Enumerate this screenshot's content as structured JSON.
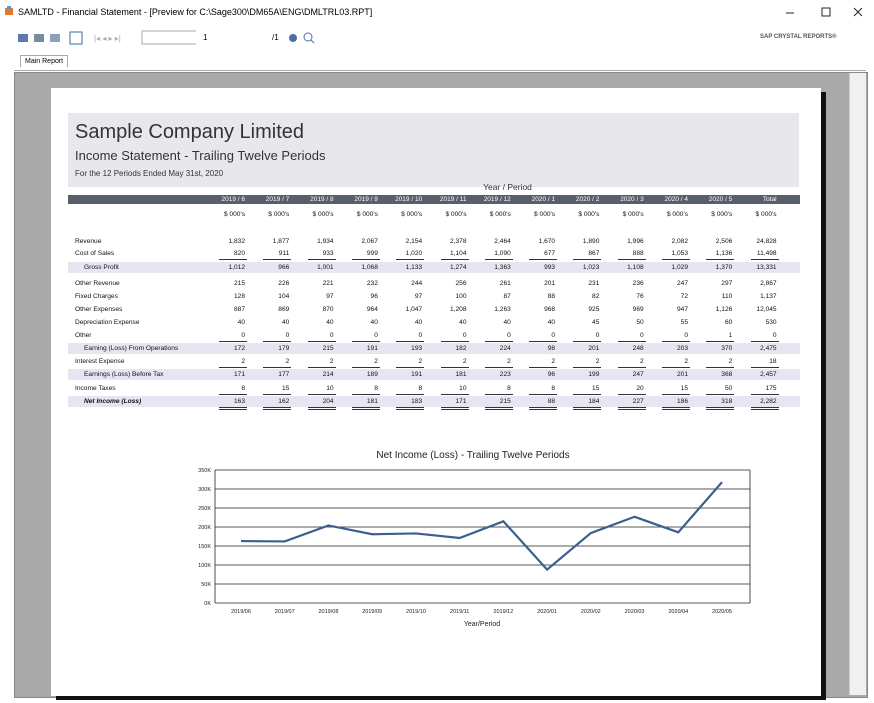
{
  "window": {
    "title": "SAMLTD - Financial Statement - [Preview for C:\\Sage300\\DM65A\\ENG\\DMLTRL03.RPT]"
  },
  "toolbar": {
    "page_input": "1",
    "page_total": "/1",
    "brand": "SAP CRYSTAL REPORTS®"
  },
  "tab": "Main Report",
  "report": {
    "company": "Sample Company Limited",
    "title": "Income Statement - Trailing Twelve Periods",
    "subtitle": "For the 12 Periods Ended May 31st, 2020"
  },
  "table": {
    "group_header": "Year / Period",
    "columns": [
      "2019 / 6",
      "2019 / 7",
      "2019 / 8",
      "2019 / 9",
      "2019 / 10",
      "2019 / 11",
      "2019 / 12",
      "2020 / 1",
      "2020 / 2",
      "2020 / 3",
      "2020 / 4",
      "2020 / 5",
      "Total"
    ],
    "units": "$ 000's",
    "rows": [
      {
        "label": "Revenue",
        "values": [
          "1,832",
          "1,877",
          "1,934",
          "2,067",
          "2,154",
          "2,378",
          "2,464",
          "1,670",
          "1,890",
          "1,996",
          "2,082",
          "2,506",
          "24,828"
        ]
      },
      {
        "label": "Cost of Sales",
        "values": [
          "820",
          "911",
          "933",
          "999",
          "1,020",
          "1,104",
          "1,090",
          "677",
          "867",
          "888",
          "1,053",
          "1,136",
          "11,498"
        ]
      },
      {
        "label": "Gross Profit",
        "values": [
          "1,012",
          "966",
          "1,001",
          "1,068",
          "1,133",
          "1,274",
          "1,363",
          "993",
          "1,023",
          "1,108",
          "1,029",
          "1,370",
          "13,331"
        ]
      },
      {
        "label": "Other Revenue",
        "values": [
          "215",
          "226",
          "221",
          "232",
          "244",
          "256",
          "261",
          "201",
          "231",
          "236",
          "247",
          "297",
          "2,867"
        ]
      },
      {
        "label": "Fixed Charges",
        "values": [
          "128",
          "104",
          "97",
          "96",
          "97",
          "100",
          "87",
          "88",
          "82",
          "76",
          "72",
          "110",
          "1,137"
        ]
      },
      {
        "label": "Other Expenses",
        "values": [
          "887",
          "869",
          "870",
          "964",
          "1,047",
          "1,208",
          "1,263",
          "968",
          "925",
          "969",
          "947",
          "1,126",
          "12,045"
        ]
      },
      {
        "label": "Depreciation Expense",
        "values": [
          "40",
          "40",
          "40",
          "40",
          "40",
          "40",
          "40",
          "40",
          "45",
          "50",
          "55",
          "60",
          "530"
        ]
      },
      {
        "label": "Other",
        "values": [
          "0",
          "0",
          "0",
          "0",
          "0",
          "0",
          "0",
          "0",
          "0",
          "0",
          "0",
          "1",
          "0"
        ]
      },
      {
        "label": "Earning (Loss) From Operations",
        "values": [
          "172",
          "179",
          "215",
          "191",
          "193",
          "182",
          "224",
          "98",
          "201",
          "248",
          "203",
          "370",
          "2,475"
        ]
      },
      {
        "label": "Interest Expense",
        "values": [
          "2",
          "2",
          "2",
          "2",
          "2",
          "2",
          "2",
          "2",
          "2",
          "2",
          "2",
          "2",
          "18"
        ]
      },
      {
        "label": "Earnings (Loss) Before Tax",
        "values": [
          "171",
          "177",
          "214",
          "189",
          "191",
          "181",
          "223",
          "96",
          "199",
          "247",
          "201",
          "368",
          "2,457"
        ]
      },
      {
        "label": "Income Taxes",
        "values": [
          "8",
          "15",
          "10",
          "8",
          "8",
          "10",
          "8",
          "8",
          "15",
          "20",
          "15",
          "50",
          "175"
        ]
      },
      {
        "label": "Net Income (Loss)",
        "values": [
          "163",
          "162",
          "204",
          "181",
          "183",
          "171",
          "215",
          "88",
          "184",
          "227",
          "186",
          "318",
          "2,282"
        ]
      }
    ]
  },
  "chart_data": {
    "type": "line",
    "title": "Net Income (Loss) - Trailing Twelve Periods",
    "x_label": "Year/Period",
    "categories": [
      "2019/06",
      "2019/07",
      "2019/08",
      "2019/09",
      "2019/10",
      "2019/11",
      "2019/12",
      "2020/01",
      "2020/02",
      "2020/03",
      "2020/04",
      "2020/05"
    ],
    "values": [
      163000,
      162000,
      204000,
      181000,
      183000,
      171000,
      215000,
      88000,
      184000,
      227000,
      186000,
      318000
    ],
    "color": "#3b5f8e",
    "ylim": [
      0,
      350000
    ],
    "yticks": [
      {
        "value": 0,
        "label": "0K"
      },
      {
        "value": 50000,
        "label": "50K"
      },
      {
        "value": 100000,
        "label": "100K"
      },
      {
        "value": 150000,
        "label": "150K"
      },
      {
        "value": 200000,
        "label": "200K"
      },
      {
        "value": 250000,
        "label": "250K"
      },
      {
        "value": 300000,
        "label": "300K"
      },
      {
        "value": 350000,
        "label": "350K"
      }
    ],
    "grid": true
  }
}
